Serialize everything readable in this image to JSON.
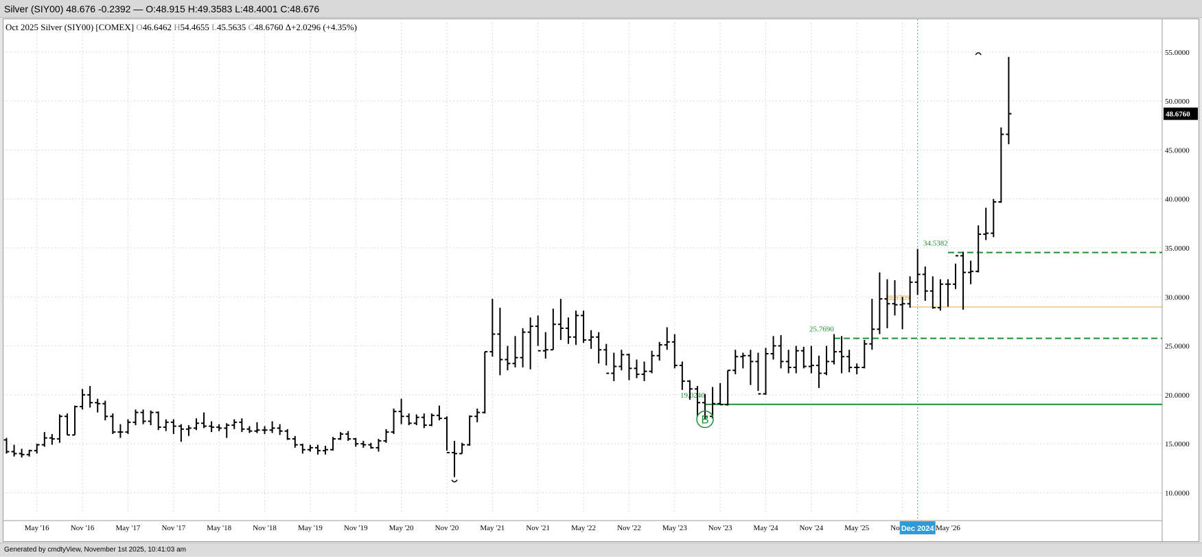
{
  "header": {
    "title": "Silver (SIY00) 48.676 -0.2392 — O:48.915 H:49.3583 L:48.4001 C:48.676"
  },
  "legend": {
    "name": "Oct 2025 Silver (SIY00) [COMEX]",
    "o_key": "O",
    "o_val": "46.6462",
    "h_key": "H",
    "h_val": "54.4655",
    "l_key": "L",
    "l_val": "45.5635",
    "c_key": "C",
    "c_val": "48.6760",
    "change": "Δ+2.0296 (+4.35%)"
  },
  "footer": {
    "text": "Generated by cmdtyView, November 1st 2025, 10:41:03 am"
  },
  "chart_data": {
    "type": "ohlc",
    "interval": "monthly",
    "y_range": [
      8,
      58
    ],
    "y_ticks": [
      "10.0000",
      "15.0000",
      "20.0000",
      "25.0000",
      "30.0000",
      "35.0000",
      "40.0000",
      "45.0000",
      "50.0000",
      "55.0000"
    ],
    "x_ticks": [
      "y '15",
      "May '16",
      "Nov '16",
      "May '17",
      "Nov '17",
      "May '18",
      "Nov '18",
      "May '19",
      "Nov '19",
      "May '20",
      "Nov '20",
      "May '21",
      "Nov '21",
      "May '22",
      "Nov '22",
      "May '23",
      "Nov '23",
      "May '24",
      "Nov '24",
      "May '25",
      "Nov '25",
      "May '26"
    ],
    "crosshair_label": "Dec 2024",
    "last_price_label": "48.6760",
    "colors": {
      "bars": "#000000",
      "support": "#1a8f2e",
      "orange": "#f0a020",
      "crosshair": "#2e9bd8",
      "last_bg": "#000000"
    },
    "bars": [
      [
        15.4,
        15.6,
        14.0,
        14.2
      ],
      [
        14.2,
        14.9,
        13.7,
        14.0
      ],
      [
        14.0,
        14.5,
        13.6,
        13.9
      ],
      [
        13.9,
        14.4,
        13.7,
        14.3
      ],
      [
        14.3,
        15.0,
        14.0,
        14.9
      ],
      [
        14.9,
        16.2,
        14.7,
        15.6
      ],
      [
        15.6,
        16.0,
        14.9,
        15.5
      ],
      [
        15.5,
        18.0,
        15.1,
        17.8
      ],
      [
        17.8,
        18.1,
        15.9,
        15.9
      ],
      [
        15.9,
        18.9,
        15.9,
        18.8
      ],
      [
        18.8,
        20.6,
        18.5,
        20.0
      ],
      [
        20.0,
        20.9,
        18.7,
        19.2
      ],
      [
        19.2,
        19.6,
        18.2,
        19.1
      ],
      [
        19.1,
        19.4,
        17.4,
        17.8
      ],
      [
        17.8,
        18.1,
        16.0,
        16.2
      ],
      [
        16.2,
        17.0,
        15.6,
        16.2
      ],
      [
        16.2,
        17.5,
        16.0,
        17.2
      ],
      [
        17.2,
        18.5,
        16.9,
        18.2
      ],
      [
        18.2,
        18.5,
        17.0,
        17.3
      ],
      [
        17.3,
        18.4,
        16.9,
        18.2
      ],
      [
        18.2,
        18.3,
        16.4,
        16.7
      ],
      [
        16.7,
        17.5,
        16.3,
        17.2
      ],
      [
        17.2,
        17.5,
        16.0,
        16.8
      ],
      [
        16.8,
        17.0,
        15.2,
        16.5
      ],
      [
        16.5,
        16.9,
        15.8,
        16.6
      ],
      [
        16.6,
        17.6,
        16.4,
        17.1
      ],
      [
        17.1,
        18.2,
        16.6,
        16.8
      ],
      [
        16.8,
        17.3,
        16.2,
        16.7
      ],
      [
        16.7,
        17.0,
        16.3,
        16.6
      ],
      [
        16.6,
        17.1,
        15.6,
        16.9
      ],
      [
        16.9,
        17.5,
        16.5,
        17.2
      ],
      [
        17.2,
        17.6,
        16.2,
        16.5
      ],
      [
        16.5,
        16.8,
        16.1,
        16.3
      ],
      [
        16.3,
        17.2,
        16.1,
        16.4
      ],
      [
        16.4,
        16.8,
        16.0,
        16.4
      ],
      [
        16.4,
        17.3,
        16.1,
        16.6
      ],
      [
        16.6,
        17.0,
        15.9,
        16.3
      ],
      [
        16.3,
        16.5,
        15.4,
        15.5
      ],
      [
        15.5,
        15.8,
        14.6,
        14.9
      ],
      [
        14.9,
        15.0,
        14.0,
        14.4
      ],
      [
        14.4,
        14.9,
        14.2,
        14.6
      ],
      [
        14.6,
        14.9,
        13.9,
        14.3
      ],
      [
        14.3,
        14.8,
        13.9,
        14.4
      ],
      [
        14.4,
        15.7,
        14.3,
        15.5
      ],
      [
        15.5,
        16.2,
        15.4,
        16.0
      ],
      [
        16.0,
        16.3,
        15.3,
        15.5
      ],
      [
        15.5,
        15.6,
        14.7,
        15.0
      ],
      [
        15.0,
        15.3,
        14.6,
        14.9
      ],
      [
        14.9,
        15.1,
        14.5,
        14.6
      ],
      [
        14.6,
        15.5,
        14.2,
        15.3
      ],
      [
        15.3,
        16.5,
        15.1,
        16.2
      ],
      [
        16.2,
        18.6,
        16.0,
        18.3
      ],
      [
        18.3,
        19.6,
        17.0,
        17.8
      ],
      [
        17.8,
        18.1,
        16.9,
        17.1
      ],
      [
        17.1,
        18.0,
        16.9,
        17.7
      ],
      [
        17.7,
        18.1,
        16.6,
        16.9
      ],
      [
        16.9,
        18.1,
        16.8,
        17.9
      ],
      [
        17.9,
        18.9,
        17.4,
        17.6
      ],
      [
        17.6,
        17.8,
        14.3,
        14.1
      ],
      [
        14.1,
        15.3,
        11.6,
        14.0
      ],
      [
        14.0,
        15.1,
        14.0,
        14.9
      ],
      [
        14.9,
        17.9,
        14.8,
        17.8
      ],
      [
        17.8,
        18.6,
        17.2,
        18.2
      ],
      [
        18.2,
        24.4,
        18.1,
        24.4
      ],
      [
        24.4,
        29.8,
        23.9,
        26.2
      ],
      [
        26.2,
        28.9,
        22.0,
        23.6
      ],
      [
        23.6,
        25.0,
        22.5,
        23.2
      ],
      [
        23.2,
        26.0,
        22.8,
        23.8
      ],
      [
        23.8,
        26.8,
        22.8,
        26.4
      ],
      [
        26.4,
        27.9,
        22.6,
        27.0
      ],
      [
        27.0,
        28.1,
        25.0,
        24.5
      ],
      [
        24.5,
        26.4,
        23.7,
        24.6
      ],
      [
        24.6,
        28.8,
        24.6,
        27.2
      ],
      [
        27.2,
        29.8,
        25.6,
        26.8
      ],
      [
        26.8,
        27.9,
        25.2,
        25.9
      ],
      [
        25.9,
        28.6,
        25.1,
        28.1
      ],
      [
        28.1,
        28.6,
        25.3,
        25.6
      ],
      [
        25.6,
        26.6,
        24.7,
        25.9
      ],
      [
        25.9,
        26.4,
        23.2,
        24.6
      ],
      [
        24.6,
        25.2,
        23.0,
        22.2
      ],
      [
        22.2,
        24.3,
        21.4,
        22.9
      ],
      [
        22.9,
        24.6,
        22.5,
        24.1
      ],
      [
        24.1,
        24.2,
        21.5,
        22.7
      ],
      [
        22.7,
        23.6,
        21.7,
        22.1
      ],
      [
        22.1,
        23.4,
        21.4,
        22.4
      ],
      [
        22.4,
        24.5,
        22.2,
        24.0
      ],
      [
        24.0,
        25.4,
        23.5,
        25.1
      ],
      [
        25.1,
        26.9,
        24.6,
        25.4
      ],
      [
        25.4,
        26.2,
        22.7,
        23.0
      ],
      [
        23.0,
        23.4,
        20.5,
        21.4
      ],
      [
        21.4,
        21.5,
        19.5,
        20.6
      ],
      [
        20.6,
        20.9,
        17.8,
        19.2
      ],
      [
        19.2,
        20.1,
        17.5,
        17.8
      ],
      [
        17.8,
        20.8,
        17.6,
        19.1
      ],
      [
        19.1,
        21.2,
        19.0,
        19.0
      ],
      [
        19.0,
        22.5,
        18.9,
        22.5
      ],
      [
        22.5,
        24.6,
        22.1,
        23.9
      ],
      [
        23.9,
        24.3,
        22.7,
        24.0
      ],
      [
        24.0,
        24.6,
        21.0,
        23.4
      ],
      [
        23.4,
        24.3,
        20.4,
        20.1
      ],
      [
        20.1,
        24.8,
        20.0,
        24.2
      ],
      [
        24.2,
        26.0,
        23.6,
        25.0
      ],
      [
        25.0,
        26.1,
        22.7,
        23.4
      ],
      [
        23.4,
        24.6,
        22.2,
        22.8
      ],
      [
        22.8,
        25.0,
        22.2,
        24.5
      ],
      [
        24.5,
        24.9,
        22.7,
        22.9
      ],
      [
        22.9,
        25.0,
        22.2,
        23.0
      ],
      [
        23.0,
        24.0,
        20.7,
        22.2
      ],
      [
        22.2,
        25.0,
        22.0,
        23.4
      ],
      [
        23.4,
        26.2,
        23.1,
        24.4
      ],
      [
        24.4,
        26.0,
        22.2,
        23.9
      ],
      [
        23.9,
        24.6,
        22.3,
        22.8
      ],
      [
        22.8,
        23.2,
        22.1,
        22.8
      ],
      [
        22.8,
        25.6,
        22.7,
        25.2
      ],
      [
        25.2,
        29.8,
        24.6,
        26.7
      ],
      [
        26.7,
        32.5,
        26.2,
        29.8
      ],
      [
        29.8,
        31.8,
        26.8,
        29.3
      ],
      [
        29.3,
        31.7,
        28.1,
        29.2
      ],
      [
        29.2,
        30.0,
        26.7,
        29.3
      ],
      [
        29.3,
        32.1,
        28.9,
        31.5
      ],
      [
        31.5,
        34.9,
        30.2,
        32.3
      ],
      [
        32.3,
        33.1,
        29.6,
        30.6
      ],
      [
        30.6,
        32.1,
        28.8,
        28.9
      ],
      [
        28.9,
        31.8,
        28.6,
        31.3
      ],
      [
        31.3,
        31.8,
        29.0,
        31.3
      ],
      [
        31.3,
        33.4,
        30.8,
        34.2
      ],
      [
        34.2,
        34.6,
        28.7,
        32.5
      ],
      [
        32.5,
        33.7,
        31.3,
        32.6
      ],
      [
        32.6,
        37.3,
        32.5,
        36.4
      ],
      [
        36.4,
        39.1,
        35.8,
        36.5
      ],
      [
        36.5,
        40.0,
        36.1,
        39.7
      ],
      [
        39.7,
        47.3,
        39.6,
        46.6
      ],
      [
        46.6,
        54.5,
        45.6,
        48.7
      ]
    ],
    "lines": [
      {
        "label": "34.5382",
        "value": 34.5382,
        "color": "support",
        "style": "dashed",
        "start_bar": 124
      },
      {
        "label": "28.9709",
        "value": 28.9709,
        "color": "orange",
        "style": "solid",
        "start_bar": 119
      },
      {
        "label": "25.7690",
        "value": 25.769,
        "color": "support",
        "style": "dashed",
        "start_bar": 109
      },
      {
        "label": "19.0246",
        "value": 19.0246,
        "color": "support",
        "style": "solid",
        "start_bar": 92
      }
    ],
    "marker": {
      "label": "B",
      "bar": 92,
      "value": 17.5
    },
    "swing_marks": [
      {
        "bar": 59,
        "value": 11.6,
        "position": "below"
      },
      {
        "bar": 128,
        "value": 54.5,
        "position": "above"
      }
    ],
    "crosshair_bar": 120
  }
}
